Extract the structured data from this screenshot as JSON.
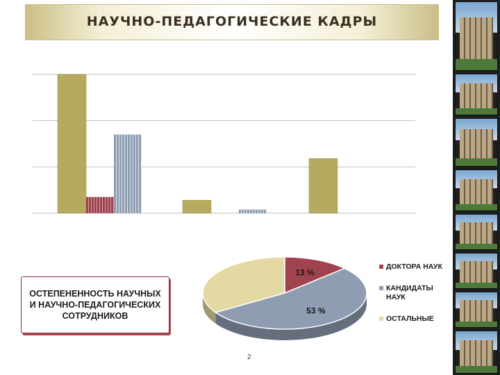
{
  "slide": {
    "title": "НАУЧНО-ПЕДАГОГИЧЕСКИЕ КАДРЫ",
    "caption": "ОСТЕПЕНЕННОСТЬ НАУЧНЫХ И НАУЧНО-ПЕДАГОГИЧЕСКИХ СОТРУДНИКОВ",
    "page_number": "2"
  },
  "colors": {
    "gold": "#b6aa5e",
    "maroon": "#a0434f",
    "steel": "#8f9db2",
    "cream": "#e4d9a2"
  },
  "chart_data": [
    {
      "type": "bar",
      "grid": true,
      "ylim": [
        0,
        3
      ],
      "bars": [
        {
          "group": 0,
          "series": "gold",
          "value": 3.0
        },
        {
          "group": 0,
          "series": "maroon",
          "value": 0.35
        },
        {
          "group": 0,
          "series": "steel",
          "value": 1.7
        },
        {
          "group": 1,
          "series": "gold",
          "value": 0.28
        },
        {
          "group": 1,
          "series": "steel",
          "value": 0.08
        },
        {
          "group": 2,
          "series": "gold",
          "value": 1.18
        }
      ]
    },
    {
      "type": "pie",
      "legend_position": "right",
      "slices": [
        {
          "name": "ДОКТОРА НАУК",
          "value": 13,
          "label": "13 %",
          "color": "#a0434f"
        },
        {
          "name": "КАНДИДАТЫ НАУК",
          "value": 53,
          "label": "53 %",
          "color": "#8f9db2"
        },
        {
          "name": "ОСТАЛЬНЫЕ",
          "value": 34,
          "label": "",
          "color": "#e4d9a2"
        }
      ]
    }
  ]
}
